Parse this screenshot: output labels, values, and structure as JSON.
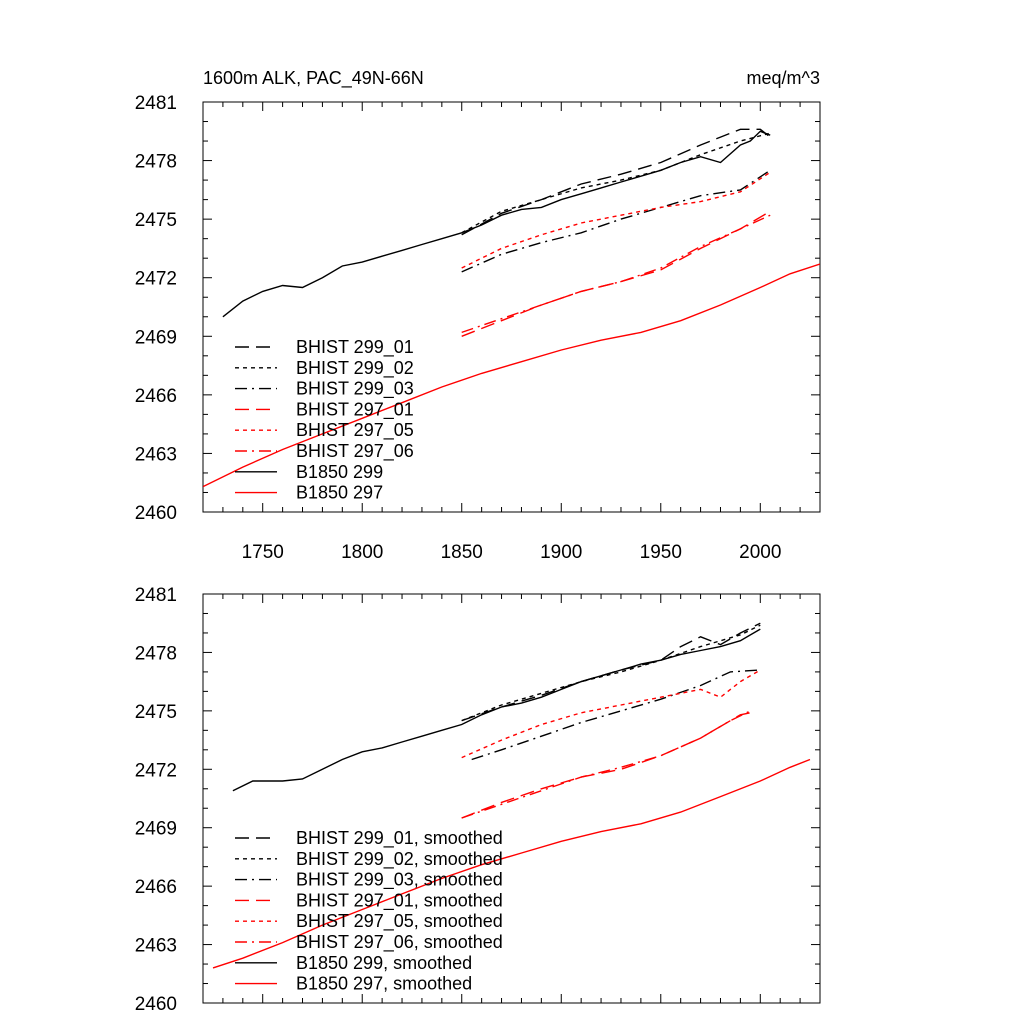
{
  "chart_data": [
    {
      "type": "line",
      "title_left": "1600m ALK, PAC_49N-66N",
      "title_right": "meq/m^3",
      "xlim": [
        1720,
        2030
      ],
      "ylim": [
        2460,
        2481
      ],
      "xticks": [
        "1750",
        "1800",
        "1850",
        "1900",
        "1950",
        "2000"
      ],
      "yticks": [
        "2460",
        "2463",
        "2466",
        "2469",
        "2472",
        "2475",
        "2478",
        "2481"
      ],
      "series": [
        {
          "name": "BHIST 299_01",
          "color": "#000000",
          "dash": "dash",
          "x": [
            1850,
            1870,
            1890,
            1910,
            1930,
            1950,
            1970,
            1980,
            1990,
            2000,
            2005
          ],
          "y": [
            2474.2,
            2475.3,
            2476.0,
            2476.8,
            2477.3,
            2477.9,
            2478.8,
            2479.2,
            2479.6,
            2479.6,
            2479.2
          ]
        },
        {
          "name": "BHIST 299_02",
          "color": "#000000",
          "dash": "dot",
          "x": [
            1850,
            1870,
            1890,
            1910,
            1930,
            1950,
            1970,
            1990,
            2005
          ],
          "y": [
            2474.3,
            2475.4,
            2476.0,
            2476.6,
            2477.0,
            2477.5,
            2478.3,
            2479.0,
            2479.4
          ]
        },
        {
          "name": "BHIST 299_03",
          "color": "#000000",
          "dash": "dashdot",
          "x": [
            1850,
            1870,
            1890,
            1910,
            1930,
            1950,
            1970,
            1990,
            2005
          ],
          "y": [
            2472.3,
            2473.2,
            2473.8,
            2474.3,
            2475.0,
            2475.6,
            2476.2,
            2476.5,
            2477.5
          ]
        },
        {
          "name": "BHIST 297_01",
          "color": "#ff0000",
          "dash": "dash",
          "x": [
            1850,
            1870,
            1890,
            1910,
            1930,
            1950,
            1970,
            1990,
            2005
          ],
          "y": [
            2469.0,
            2469.8,
            2470.6,
            2471.3,
            2471.8,
            2472.4,
            2473.5,
            2474.5,
            2475.4
          ]
        },
        {
          "name": "BHIST 297_05",
          "color": "#ff0000",
          "dash": "dot",
          "x": [
            1850,
            1870,
            1890,
            1910,
            1930,
            1950,
            1970,
            1990,
            2005
          ],
          "y": [
            2472.5,
            2473.5,
            2474.2,
            2474.8,
            2475.2,
            2475.6,
            2475.9,
            2476.4,
            2477.4
          ]
        },
        {
          "name": "BHIST 297_06",
          "color": "#ff0000",
          "dash": "dashdot",
          "x": [
            1850,
            1870,
            1890,
            1910,
            1930,
            1950,
            1970,
            1990,
            2005
          ],
          "y": [
            2469.2,
            2469.9,
            2470.6,
            2471.3,
            2471.8,
            2472.5,
            2473.6,
            2474.5,
            2475.2
          ]
        },
        {
          "name": "B1850 299",
          "color": "#000000",
          "dash": "solid",
          "x": [
            1730,
            1740,
            1750,
            1760,
            1770,
            1780,
            1790,
            1800,
            1810,
            1820,
            1830,
            1840,
            1850,
            1860,
            1870,
            1880,
            1890,
            1900,
            1910,
            1920,
            1930,
            1940,
            1950,
            1960,
            1970,
            1980,
            1990,
            1995,
            2000,
            2005
          ],
          "y": [
            2470.0,
            2470.8,
            2471.3,
            2471.6,
            2471.5,
            2472.0,
            2472.6,
            2472.8,
            2473.1,
            2473.4,
            2473.7,
            2474.0,
            2474.3,
            2474.7,
            2475.2,
            2475.5,
            2475.6,
            2476.0,
            2476.3,
            2476.6,
            2476.9,
            2477.2,
            2477.5,
            2477.9,
            2478.2,
            2477.9,
            2478.8,
            2479.0,
            2479.5,
            2479.3
          ]
        },
        {
          "name": "B1850 297",
          "color": "#ff0000",
          "dash": "solid",
          "x": [
            1720,
            1740,
            1760,
            1780,
            1800,
            1820,
            1840,
            1860,
            1880,
            1900,
            1920,
            1940,
            1960,
            1980,
            2000,
            2015,
            2030
          ],
          "y": [
            2461.3,
            2462.3,
            2463.2,
            2464.0,
            2464.8,
            2465.6,
            2466.4,
            2467.1,
            2467.7,
            2468.3,
            2468.8,
            2469.2,
            2469.8,
            2470.6,
            2471.5,
            2472.2,
            2472.7
          ]
        }
      ]
    },
    {
      "type": "line",
      "xlim": [
        1720,
        2030
      ],
      "ylim": [
        2460,
        2481
      ],
      "yticks": [
        "2460",
        "2463",
        "2466",
        "2469",
        "2472",
        "2475",
        "2478",
        "2481"
      ],
      "series": [
        {
          "name": "BHIST 299_01, smoothed",
          "color": "#000000",
          "dash": "dash",
          "x": [
            1850,
            1870,
            1890,
            1910,
            1930,
            1950,
            1960,
            1970,
            1980,
            1990,
            2000
          ],
          "y": [
            2474.5,
            2475.2,
            2475.8,
            2476.5,
            2477.1,
            2477.6,
            2478.3,
            2478.8,
            2478.4,
            2479.0,
            2479.5
          ]
        },
        {
          "name": "BHIST 299_02, smoothed",
          "color": "#000000",
          "dash": "dot",
          "x": [
            1850,
            1870,
            1890,
            1910,
            1930,
            1950,
            1970,
            1990,
            2000
          ],
          "y": [
            2474.5,
            2475.3,
            2475.9,
            2476.5,
            2477.0,
            2477.6,
            2478.3,
            2478.9,
            2479.4
          ]
        },
        {
          "name": "BHIST 299_03, smoothed",
          "color": "#000000",
          "dash": "dashdot",
          "x": [
            1855,
            1870,
            1890,
            1910,
            1930,
            1950,
            1970,
            1985,
            2000
          ],
          "y": [
            2472.5,
            2473.0,
            2473.7,
            2474.4,
            2475.0,
            2475.6,
            2476.3,
            2477.0,
            2477.1
          ]
        },
        {
          "name": "BHIST 297_01, smoothed",
          "color": "#ff0000",
          "dash": "dash",
          "x": [
            1850,
            1870,
            1890,
            1910,
            1930,
            1950,
            1970,
            1990,
            1995
          ],
          "y": [
            2469.5,
            2470.3,
            2471.0,
            2471.6,
            2472.0,
            2472.7,
            2473.6,
            2474.8,
            2474.9
          ]
        },
        {
          "name": "BHIST 297_05, smoothed",
          "color": "#ff0000",
          "dash": "dot",
          "x": [
            1850,
            1870,
            1890,
            1910,
            1930,
            1950,
            1970,
            1980,
            1990,
            2000
          ],
          "y": [
            2472.6,
            2473.5,
            2474.3,
            2474.9,
            2475.3,
            2475.7,
            2476.1,
            2475.7,
            2476.5,
            2477.1
          ]
        },
        {
          "name": "BHIST 297_06, smoothed",
          "color": "#ff0000",
          "dash": "dashdot",
          "x": [
            1850,
            1870,
            1890,
            1910,
            1930,
            1950,
            1970,
            1985,
            1995
          ],
          "y": [
            2469.5,
            2470.2,
            2470.9,
            2471.6,
            2472.1,
            2472.7,
            2473.6,
            2474.5,
            2475.0
          ]
        },
        {
          "name": "B1850 299, smoothed",
          "color": "#000000",
          "dash": "solid",
          "x": [
            1735,
            1745,
            1760,
            1770,
            1780,
            1790,
            1800,
            1810,
            1820,
            1830,
            1840,
            1850,
            1860,
            1870,
            1880,
            1890,
            1900,
            1910,
            1920,
            1930,
            1940,
            1950,
            1960,
            1970,
            1980,
            1990,
            2000
          ],
          "y": [
            2470.9,
            2471.4,
            2471.4,
            2471.5,
            2472.0,
            2472.5,
            2472.9,
            2473.1,
            2473.4,
            2473.7,
            2474.0,
            2474.3,
            2474.8,
            2475.2,
            2475.4,
            2475.7,
            2476.1,
            2476.5,
            2476.8,
            2477.1,
            2477.4,
            2477.6,
            2477.9,
            2478.1,
            2478.3,
            2478.6,
            2479.2
          ]
        },
        {
          "name": "B1850 297, smoothed",
          "color": "#ff0000",
          "dash": "solid",
          "x": [
            1725,
            1740,
            1760,
            1780,
            1800,
            1820,
            1840,
            1860,
            1880,
            1900,
            1920,
            1940,
            1960,
            1980,
            2000,
            2015,
            2025
          ],
          "y": [
            2461.8,
            2462.3,
            2463.1,
            2464.0,
            2464.8,
            2465.6,
            2466.4,
            2467.1,
            2467.7,
            2468.3,
            2468.8,
            2469.2,
            2469.8,
            2470.6,
            2471.4,
            2472.1,
            2472.5
          ]
        }
      ]
    }
  ]
}
